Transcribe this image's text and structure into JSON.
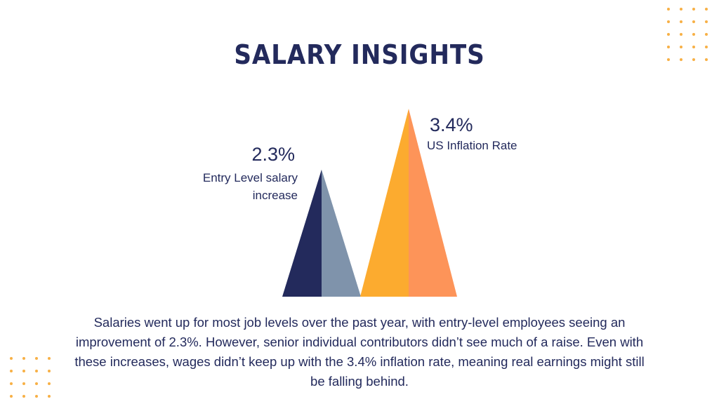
{
  "title": "SALARY INSIGHTS",
  "colors": {
    "title": "#232a5c",
    "text": "#232a5c",
    "entry_dark": "#232a5c",
    "entry_light": "#7f93ab",
    "inflation_dark": "#fcab2f",
    "inflation_light": "#fd9459",
    "dots": "#f7b046"
  },
  "chart_data": {
    "type": "bar",
    "categories": [
      "Entry Level salary increase",
      "US Inflation Rate"
    ],
    "values": [
      2.3,
      3.4
    ],
    "value_labels": [
      "2.3%",
      "3.4%"
    ],
    "unit": "%",
    "ylim": [
      0,
      3.4
    ],
    "grid": false,
    "title": "",
    "xlabel": "",
    "ylabel": ""
  },
  "labels": {
    "entry_value": "2.3%",
    "entry_text": "Entry Level salary increase",
    "inflation_value": "3.4%",
    "inflation_text": "US Inflation Rate"
  },
  "body_text": "Salaries went up for most job levels over the past year, with entry-level employees seeing an improvement of 2.3%. However, senior individual contributors didn’t see much of a raise. Even with these increases, wages didn’t keep up with the 3.4% inflation rate, meaning real earnings might still be falling behind."
}
